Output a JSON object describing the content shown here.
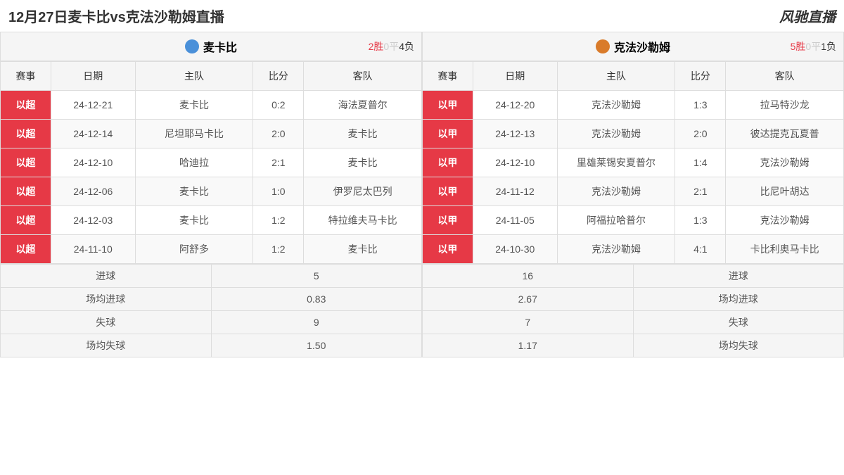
{
  "header": {
    "title": "12月27日麦卡比vs克法沙勒姆直播",
    "brand": "风驰直播"
  },
  "colors": {
    "league_bg": "#e63946",
    "win": "#e63946",
    "draw": "#cccccc",
    "loss": "#333333",
    "team1_icon": "#4a90d9",
    "team2_icon": "#d97b2a"
  },
  "columns": {
    "league": "赛事",
    "date": "日期",
    "home": "主队",
    "score": "比分",
    "away": "客队"
  },
  "team1": {
    "name": "麦卡比",
    "wins": "2胜",
    "draws": "0平",
    "losses": "4负",
    "league": "以超",
    "matches": [
      {
        "date": "24-12-21",
        "home": "麦卡比",
        "score": "0:2",
        "away": "海法夏普尔"
      },
      {
        "date": "24-12-14",
        "home": "尼坦耶马卡比",
        "score": "2:0",
        "away": "麦卡比"
      },
      {
        "date": "24-12-10",
        "home": "哈迪拉",
        "score": "2:1",
        "away": "麦卡比"
      },
      {
        "date": "24-12-06",
        "home": "麦卡比",
        "score": "1:0",
        "away": "伊罗尼太巴列"
      },
      {
        "date": "24-12-03",
        "home": "麦卡比",
        "score": "1:2",
        "away": "特拉维夫马卡比"
      },
      {
        "date": "24-11-10",
        "home": "阿舒多",
        "score": "1:2",
        "away": "麦卡比"
      }
    ]
  },
  "team2": {
    "name": "克法沙勒姆",
    "wins": "5胜",
    "draws": "0平",
    "losses": "1负",
    "league": "以甲",
    "matches": [
      {
        "date": "24-12-20",
        "home": "克法沙勒姆",
        "score": "1:3",
        "away": "拉马特沙龙"
      },
      {
        "date": "24-12-13",
        "home": "克法沙勒姆",
        "score": "2:0",
        "away": "彼达提克瓦夏普"
      },
      {
        "date": "24-12-10",
        "home": "里雄莱锡安夏普尔",
        "score": "1:4",
        "away": "克法沙勒姆"
      },
      {
        "date": "24-11-12",
        "home": "克法沙勒姆",
        "score": "2:1",
        "away": "比尼叶胡达"
      },
      {
        "date": "24-11-05",
        "home": "阿福拉哈普尔",
        "score": "1:3",
        "away": "克法沙勒姆"
      },
      {
        "date": "24-10-30",
        "home": "克法沙勒姆",
        "score": "4:1",
        "away": "卡比利奥马卡比"
      }
    ]
  },
  "stats": {
    "labels": {
      "goals": "进球",
      "avg_goals": "场均进球",
      "conceded": "失球",
      "avg_conceded": "场均失球"
    },
    "team1": {
      "goals": "5",
      "avg_goals": "0.83",
      "conceded": "9",
      "avg_conceded": "1.50"
    },
    "team2": {
      "goals": "16",
      "avg_goals": "2.67",
      "conceded": "7",
      "avg_conceded": "1.17"
    }
  }
}
